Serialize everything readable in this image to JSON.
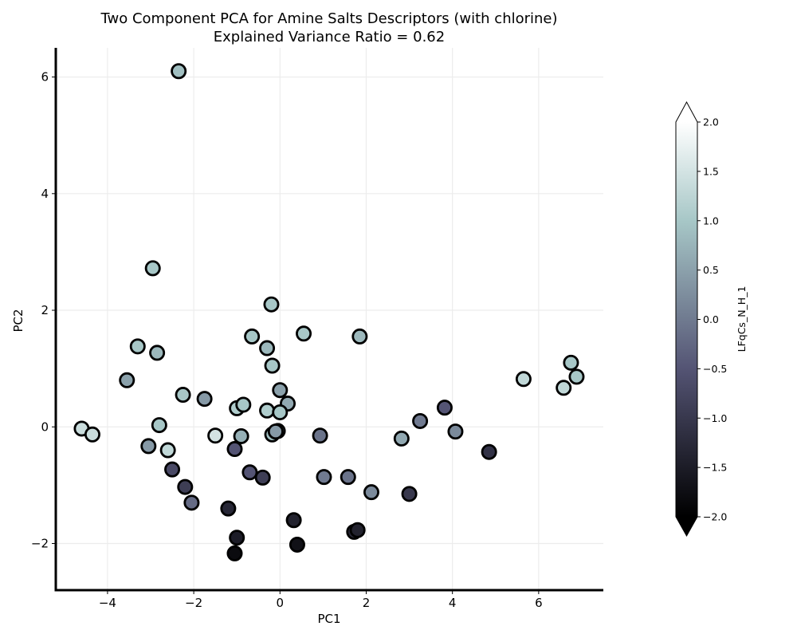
{
  "chart_data": {
    "type": "scatter",
    "title_line1": "Two Component PCA for Amine Salts Descriptors (with chlorine)",
    "title_line2": "Explained Variance Ratio = 0.62",
    "xlabel": "PC1",
    "ylabel": "PC2",
    "xlim": [
      -5.2,
      7.5
    ],
    "ylim": [
      -2.8,
      6.5
    ],
    "xticks": [
      -4,
      -2,
      0,
      2,
      4,
      6
    ],
    "yticks": [
      -2,
      0,
      2,
      4,
      6
    ],
    "xtick_labels": [
      "−4",
      "−2",
      "0",
      "2",
      "4",
      "6"
    ],
    "ytick_labels": [
      "−2",
      "0",
      "2",
      "4",
      "6"
    ],
    "grid": true,
    "colorbar": {
      "label": "LFqCs_N_H_1",
      "range": [
        -2.0,
        2.0
      ],
      "extend": "both",
      "colormap": "bone",
      "ticks": [
        2.0,
        1.5,
        1.0,
        0.5,
        0.0,
        -0.5,
        -1.0,
        -1.5,
        -2.0
      ],
      "tick_labels": [
        "2.0",
        "1.5",
        "1.0",
        "0.5",
        "0.0",
        "−0.5",
        "−1.0",
        "−1.5",
        "−2.0"
      ]
    },
    "points": [
      {
        "x": -2.35,
        "y": 6.1,
        "c": 0.9
      },
      {
        "x": -2.95,
        "y": 2.72,
        "c": 1.0
      },
      {
        "x": -3.3,
        "y": 1.38,
        "c": 1.0
      },
      {
        "x": -2.85,
        "y": 1.27,
        "c": 0.8
      },
      {
        "x": -3.55,
        "y": 0.8,
        "c": 0.5
      },
      {
        "x": -4.6,
        "y": -0.03,
        "c": 1.4
      },
      {
        "x": -4.35,
        "y": -0.13,
        "c": 1.4
      },
      {
        "x": -2.25,
        "y": 0.55,
        "c": 1.0
      },
      {
        "x": -1.75,
        "y": 0.48,
        "c": 0.4
      },
      {
        "x": -2.8,
        "y": 0.03,
        "c": 1.0
      },
      {
        "x": -3.05,
        "y": -0.33,
        "c": 0.4
      },
      {
        "x": -2.6,
        "y": -0.4,
        "c": 1.3
      },
      {
        "x": -2.5,
        "y": -0.73,
        "c": -0.7
      },
      {
        "x": -2.2,
        "y": -1.03,
        "c": -0.9
      },
      {
        "x": -2.05,
        "y": -1.3,
        "c": -0.2
      },
      {
        "x": -1.5,
        "y": -0.15,
        "c": 1.5
      },
      {
        "x": -1.0,
        "y": 0.32,
        "c": 1.1
      },
      {
        "x": -0.85,
        "y": 0.38,
        "c": 1.0
      },
      {
        "x": -0.9,
        "y": -0.16,
        "c": 0.7
      },
      {
        "x": -1.05,
        "y": -0.38,
        "c": -0.5
      },
      {
        "x": -1.2,
        "y": -1.4,
        "c": -1.3
      },
      {
        "x": -1.0,
        "y": -1.9,
        "c": -1.5
      },
      {
        "x": -1.05,
        "y": -2.17,
        "c": -1.8
      },
      {
        "x": -0.65,
        "y": 1.55,
        "c": 1.0
      },
      {
        "x": -0.2,
        "y": 2.1,
        "c": 1.0
      },
      {
        "x": -0.3,
        "y": 1.35,
        "c": 0.8
      },
      {
        "x": -0.18,
        "y": 1.05,
        "c": 1.0
      },
      {
        "x": 0.0,
        "y": 0.63,
        "c": 0.5
      },
      {
        "x": 0.18,
        "y": 0.4,
        "c": 0.6
      },
      {
        "x": -0.3,
        "y": 0.28,
        "c": 1.1
      },
      {
        "x": 0.0,
        "y": 0.25,
        "c": 1.0
      },
      {
        "x": -0.18,
        "y": -0.13,
        "c": 0.9
      },
      {
        "x": -0.05,
        "y": -0.07,
        "c": 0.7
      },
      {
        "x": -0.1,
        "y": -0.08,
        "c": 0.4
      },
      {
        "x": -0.7,
        "y": -0.78,
        "c": -0.5
      },
      {
        "x": -0.4,
        "y": -0.87,
        "c": -0.9
      },
      {
        "x": 0.55,
        "y": 1.6,
        "c": 1.0
      },
      {
        "x": 0.32,
        "y": -1.6,
        "c": -1.4
      },
      {
        "x": 0.4,
        "y": -2.02,
        "c": -1.7
      },
      {
        "x": 0.93,
        "y": -0.15,
        "c": -0.1
      },
      {
        "x": 1.02,
        "y": -0.86,
        "c": 0.0
      },
      {
        "x": 1.58,
        "y": -0.86,
        "c": -0.1
      },
      {
        "x": 1.72,
        "y": -1.8,
        "c": -1.3
      },
      {
        "x": 1.8,
        "y": -1.77,
        "c": -1.4
      },
      {
        "x": 1.85,
        "y": 1.55,
        "c": 0.8
      },
      {
        "x": 2.12,
        "y": -1.12,
        "c": 0.2
      },
      {
        "x": 2.82,
        "y": -0.2,
        "c": 0.6
      },
      {
        "x": 3.0,
        "y": -1.15,
        "c": -1.0
      },
      {
        "x": 3.25,
        "y": 0.1,
        "c": 0.0
      },
      {
        "x": 3.82,
        "y": 0.33,
        "c": -0.5
      },
      {
        "x": 4.07,
        "y": -0.08,
        "c": 0.2
      },
      {
        "x": 4.85,
        "y": -0.43,
        "c": -1.1
      },
      {
        "x": 5.65,
        "y": 0.82,
        "c": 1.3
      },
      {
        "x": 6.58,
        "y": 0.67,
        "c": 1.3
      },
      {
        "x": 6.75,
        "y": 1.1,
        "c": 1.0
      },
      {
        "x": 6.88,
        "y": 0.86,
        "c": 1.0
      }
    ]
  }
}
